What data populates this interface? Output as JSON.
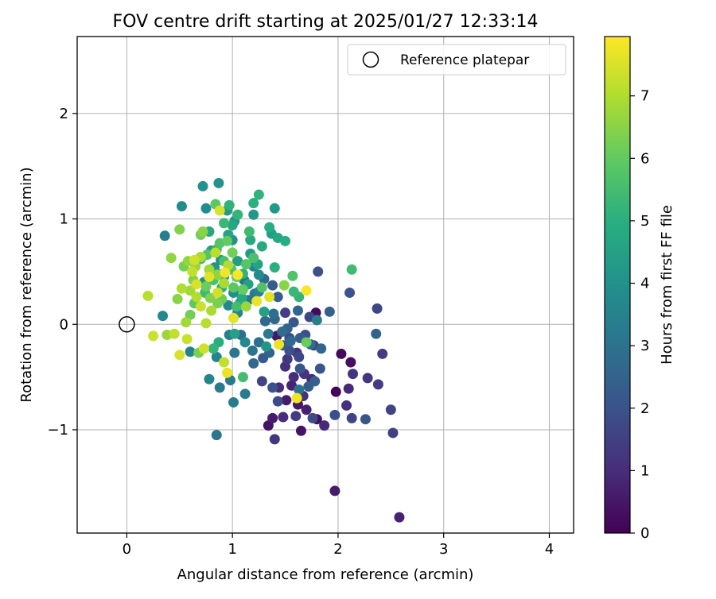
{
  "chart_data": {
    "type": "scatter",
    "title": "FOV centre drift starting at 2025/01/27 12:33:14",
    "xlabel": "Angular distance from reference (arcmin)",
    "ylabel": "Rotation from reference (arcmin)",
    "xlim": [
      -0.47,
      4.23
    ],
    "ylim": [
      -1.98,
      2.73
    ],
    "xticks": [
      0,
      1,
      2,
      3,
      4
    ],
    "yticks": [
      -1,
      0,
      1,
      2
    ],
    "xtick_labels": [
      "0",
      "1",
      "2",
      "3",
      "4"
    ],
    "ytick_labels": [
      "−1",
      "0",
      "1",
      "2"
    ],
    "grid": true,
    "legend": {
      "position": "top-right",
      "entries": [
        "Reference platepar"
      ]
    },
    "reference_point": {
      "name": "Reference platepar",
      "x": 0,
      "y": 0
    },
    "colorbar": {
      "label": "Hours from first FF file",
      "colormap": "viridis",
      "range": [
        0,
        7.95
      ],
      "ticks": [
        0,
        1,
        2,
        3,
        4,
        5,
        6,
        7
      ],
      "tick_labels": [
        "0",
        "1",
        "2",
        "3",
        "4",
        "5",
        "6",
        "7"
      ]
    },
    "points": [
      {
        "x": 1.98,
        "y": -0.64,
        "h": 0.1
      },
      {
        "x": 2.03,
        "y": -0.28,
        "h": 0.2
      },
      {
        "x": 2.12,
        "y": -0.36,
        "h": 0.3
      },
      {
        "x": 1.79,
        "y": 0.11,
        "h": 0.2
      },
      {
        "x": 1.8,
        "y": -0.9,
        "h": 0.3
      },
      {
        "x": 1.65,
        "y": -1.01,
        "h": 0.4
      },
      {
        "x": 1.34,
        "y": -0.96,
        "h": 0.4
      },
      {
        "x": 1.42,
        "y": -0.11,
        "h": 0.5
      },
      {
        "x": 1.62,
        "y": -0.76,
        "h": 0.5
      },
      {
        "x": 1.97,
        "y": -1.58,
        "h": 0.6
      },
      {
        "x": 1.51,
        "y": -0.72,
        "h": 0.6
      },
      {
        "x": 1.38,
        "y": -0.89,
        "h": 0.6
      },
      {
        "x": 1.7,
        "y": -0.81,
        "h": 0.7
      },
      {
        "x": 2.58,
        "y": -1.83,
        "h": 0.8
      },
      {
        "x": 1.56,
        "y": -0.58,
        "h": 0.8
      },
      {
        "x": 1.75,
        "y": -0.52,
        "h": 0.9
      },
      {
        "x": 2.1,
        "y": -0.61,
        "h": 0.9
      },
      {
        "x": 1.87,
        "y": -0.96,
        "h": 0.9
      },
      {
        "x": 1.48,
        "y": -0.88,
        "h": 1.0
      },
      {
        "x": 1.58,
        "y": -0.5,
        "h": 1.0
      },
      {
        "x": 1.44,
        "y": -0.6,
        "h": 1.0
      },
      {
        "x": 1.67,
        "y": -0.68,
        "h": 1.1
      },
      {
        "x": 2.08,
        "y": -0.77,
        "h": 1.1
      },
      {
        "x": 1.5,
        "y": -0.4,
        "h": 1.1
      },
      {
        "x": 1.68,
        "y": -0.47,
        "h": 1.2
      },
      {
        "x": 2.14,
        "y": -0.47,
        "h": 1.2
      },
      {
        "x": 2.28,
        "y": -0.51,
        "h": 1.2
      },
      {
        "x": 1.61,
        "y": -0.27,
        "h": 1.3
      },
      {
        "x": 1.52,
        "y": -0.33,
        "h": 1.3
      },
      {
        "x": 1.4,
        "y": -1.09,
        "h": 1.3
      },
      {
        "x": 2.38,
        "y": -0.57,
        "h": 1.4
      },
      {
        "x": 1.6,
        "y": -0.87,
        "h": 1.4
      },
      {
        "x": 2.42,
        "y": -0.28,
        "h": 1.4
      },
      {
        "x": 1.5,
        "y": 0.11,
        "h": 1.5
      },
      {
        "x": 1.77,
        "y": -0.2,
        "h": 1.5
      },
      {
        "x": 2.52,
        "y": -1.03,
        "h": 1.5
      },
      {
        "x": 1.28,
        "y": -0.54,
        "h": 1.6
      },
      {
        "x": 2.13,
        "y": -0.89,
        "h": 1.6
      },
      {
        "x": 2.5,
        "y": -0.81,
        "h": 1.6
      },
      {
        "x": 2.37,
        "y": 0.15,
        "h": 1.7
      },
      {
        "x": 1.73,
        "y": 0.07,
        "h": 1.7
      },
      {
        "x": 1.63,
        "y": -0.31,
        "h": 1.7
      },
      {
        "x": 1.43,
        "y": -0.73,
        "h": 1.8
      },
      {
        "x": 1.54,
        "y": -0.13,
        "h": 1.8
      },
      {
        "x": 1.76,
        "y": -0.89,
        "h": 1.8
      },
      {
        "x": 1.81,
        "y": 0.5,
        "h": 1.9
      },
      {
        "x": 1.97,
        "y": -0.86,
        "h": 1.9
      },
      {
        "x": 1.69,
        "y": -0.1,
        "h": 1.9
      },
      {
        "x": 1.54,
        "y": -0.25,
        "h": 2.0
      },
      {
        "x": 1.38,
        "y": -0.6,
        "h": 2.0
      },
      {
        "x": 2.11,
        "y": 0.3,
        "h": 2.0
      },
      {
        "x": 1.64,
        "y": -0.42,
        "h": 2.1
      },
      {
        "x": 1.83,
        "y": -0.42,
        "h": 2.1
      },
      {
        "x": 2.26,
        "y": -0.9,
        "h": 2.1
      },
      {
        "x": 1.48,
        "y": -0.2,
        "h": 2.2
      },
      {
        "x": 1.29,
        "y": -0.32,
        "h": 2.2
      },
      {
        "x": 1.58,
        "y": 0.02,
        "h": 2.2
      },
      {
        "x": 1.72,
        "y": -0.59,
        "h": 2.3
      },
      {
        "x": 1.38,
        "y": 0.37,
        "h": 2.3
      },
      {
        "x": 1.64,
        "y": -0.13,
        "h": 2.3
      },
      {
        "x": 1.78,
        "y": -0.54,
        "h": 2.4
      },
      {
        "x": 1.92,
        "y": 0.12,
        "h": 2.4
      },
      {
        "x": 1.43,
        "y": 0.26,
        "h": 2.4
      },
      {
        "x": 1.52,
        "y": -0.04,
        "h": 2.5
      },
      {
        "x": 1.35,
        "y": -0.27,
        "h": 2.5
      },
      {
        "x": 2.36,
        "y": -0.09,
        "h": 2.5
      },
      {
        "x": 1.62,
        "y": 0.13,
        "h": 2.6
      },
      {
        "x": 1.4,
        "y": 0.05,
        "h": 2.6
      },
      {
        "x": 1.84,
        "y": -0.23,
        "h": 2.6
      },
      {
        "x": 1.31,
        "y": 0.03,
        "h": 2.7
      },
      {
        "x": 1.55,
        "y": -0.16,
        "h": 2.7
      },
      {
        "x": 1.2,
        "y": -0.37,
        "h": 2.7
      },
      {
        "x": 1.74,
        "y": -0.19,
        "h": 2.8
      },
      {
        "x": 1.3,
        "y": 0.43,
        "h": 2.8
      },
      {
        "x": 1.47,
        "y": -0.07,
        "h": 2.8
      },
      {
        "x": 1.08,
        "y": -0.1,
        "h": 2.9
      },
      {
        "x": 1.25,
        "y": -0.17,
        "h": 2.9
      },
      {
        "x": 1.39,
        "y": 0.1,
        "h": 2.9
      },
      {
        "x": 1.11,
        "y": 0.42,
        "h": 3.0
      },
      {
        "x": 1.63,
        "y": -0.62,
        "h": 3.0
      },
      {
        "x": 1.19,
        "y": -0.25,
        "h": 3.0
      },
      {
        "x": 0.85,
        "y": -1.05,
        "h": 3.1
      },
      {
        "x": 1.15,
        "y": 0.23,
        "h": 3.1
      },
      {
        "x": 1.02,
        "y": -0.27,
        "h": 3.1
      },
      {
        "x": 1.34,
        "y": -0.09,
        "h": 3.2
      },
      {
        "x": 0.98,
        "y": -0.53,
        "h": 3.2
      },
      {
        "x": 1.21,
        "y": 0.29,
        "h": 3.2
      },
      {
        "x": 0.88,
        "y": -0.6,
        "h": 3.3
      },
      {
        "x": 1.01,
        "y": -0.74,
        "h": 3.3
      },
      {
        "x": 1.12,
        "y": -0.66,
        "h": 3.3
      },
      {
        "x": 0.97,
        "y": -0.1,
        "h": 3.4
      },
      {
        "x": 0.36,
        "y": 0.84,
        "h": 3.4
      },
      {
        "x": 1.8,
        "y": 0.04,
        "h": 3.4
      },
      {
        "x": 0.85,
        "y": -0.31,
        "h": 3.5
      },
      {
        "x": 1.25,
        "y": 0.31,
        "h": 3.5
      },
      {
        "x": 0.6,
        "y": -0.26,
        "h": 3.5
      },
      {
        "x": 1.05,
        "y": 0.11,
        "h": 3.6
      },
      {
        "x": 0.78,
        "y": -0.52,
        "h": 3.6
      },
      {
        "x": 1.2,
        "y": 0.55,
        "h": 3.6
      },
      {
        "x": 0.96,
        "y": 0.18,
        "h": 3.7
      },
      {
        "x": 0.34,
        "y": 0.08,
        "h": 3.7
      },
      {
        "x": 1.12,
        "y": -0.17,
        "h": 3.7
      },
      {
        "x": 0.52,
        "y": 1.12,
        "h": 3.8
      },
      {
        "x": 0.75,
        "y": 1.1,
        "h": 3.8
      },
      {
        "x": 1.25,
        "y": 0.47,
        "h": 3.8
      },
      {
        "x": 0.73,
        "y": 0.4,
        "h": 3.9
      },
      {
        "x": 1.01,
        "y": 0.3,
        "h": 3.9
      },
      {
        "x": 0.89,
        "y": 0.61,
        "h": 3.9
      },
      {
        "x": 0.72,
        "y": 1.31,
        "h": 4.0
      },
      {
        "x": 0.87,
        "y": 1.34,
        "h": 4.0
      },
      {
        "x": 1.0,
        "y": 0.8,
        "h": 4.0
      },
      {
        "x": 0.83,
        "y": 0.54,
        "h": 4.1
      },
      {
        "x": 1.07,
        "y": 0.2,
        "h": 4.1
      },
      {
        "x": 1.32,
        "y": -0.21,
        "h": 4.1
      },
      {
        "x": 1.02,
        "y": 0.98,
        "h": 4.2
      },
      {
        "x": 0.95,
        "y": 1.08,
        "h": 4.2
      },
      {
        "x": 1.2,
        "y": 1.04,
        "h": 4.2
      },
      {
        "x": 1.4,
        "y": 1.1,
        "h": 4.3
      },
      {
        "x": 0.92,
        "y": 0.45,
        "h": 4.3
      },
      {
        "x": 1.17,
        "y": 0.67,
        "h": 4.3
      },
      {
        "x": 1.05,
        "y": 0.6,
        "h": 4.4
      },
      {
        "x": 0.8,
        "y": 0.7,
        "h": 4.4
      },
      {
        "x": 1.37,
        "y": 0.86,
        "h": 4.4
      },
      {
        "x": 1.3,
        "y": 0.12,
        "h": 4.5
      },
      {
        "x": 1.15,
        "y": 0.38,
        "h": 4.5
      },
      {
        "x": 1.02,
        "y": -0.09,
        "h": 4.5
      },
      {
        "x": 0.96,
        "y": 0.85,
        "h": 4.6
      },
      {
        "x": 0.86,
        "y": 0.48,
        "h": 4.6
      },
      {
        "x": 1.24,
        "y": 0.57,
        "h": 4.6
      },
      {
        "x": 1.43,
        "y": 0.82,
        "h": 4.7
      },
      {
        "x": 0.78,
        "y": 0.88,
        "h": 4.7
      },
      {
        "x": 1.0,
        "y": 0.94,
        "h": 4.7
      },
      {
        "x": 1.28,
        "y": 0.74,
        "h": 4.8
      },
      {
        "x": 1.17,
        "y": 0.8,
        "h": 4.8
      },
      {
        "x": 1.09,
        "y": 0.25,
        "h": 4.8
      },
      {
        "x": 1.5,
        "y": 0.79,
        "h": 4.9
      },
      {
        "x": 1.35,
        "y": 0.92,
        "h": 4.9
      },
      {
        "x": 0.87,
        "y": -0.17,
        "h": 4.9
      },
      {
        "x": 1.4,
        "y": 0.54,
        "h": 5.0
      },
      {
        "x": 1.2,
        "y": 1.15,
        "h": 5.0
      },
      {
        "x": 0.9,
        "y": 0.35,
        "h": 5.0
      },
      {
        "x": 1.25,
        "y": 1.23,
        "h": 5.1
      },
      {
        "x": 0.97,
        "y": 1.13,
        "h": 5.1
      },
      {
        "x": 1.1,
        "y": 0.48,
        "h": 5.1
      },
      {
        "x": 0.82,
        "y": -0.23,
        "h": 5.2
      },
      {
        "x": 1.05,
        "y": 1.04,
        "h": 5.2
      },
      {
        "x": 1.63,
        "y": 0.26,
        "h": 5.2
      },
      {
        "x": 0.92,
        "y": 0.96,
        "h": 5.3
      },
      {
        "x": 0.85,
        "y": 0.71,
        "h": 5.3
      },
      {
        "x": 1.58,
        "y": 0.31,
        "h": 5.3
      },
      {
        "x": 1.16,
        "y": 0.88,
        "h": 5.4
      },
      {
        "x": 0.74,
        "y": 0.3,
        "h": 5.4
      },
      {
        "x": 2.13,
        "y": 0.52,
        "h": 5.4
      },
      {
        "x": 0.7,
        "y": 0.62,
        "h": 5.5
      },
      {
        "x": 1.1,
        "y": -0.5,
        "h": 5.5
      },
      {
        "x": 1.04,
        "y": 0.17,
        "h": 5.5
      },
      {
        "x": 0.92,
        "y": 0.6,
        "h": 5.6
      },
      {
        "x": 1.2,
        "y": 0.63,
        "h": 5.6
      },
      {
        "x": 0.82,
        "y": 0.42,
        "h": 5.6
      },
      {
        "x": 0.99,
        "y": 0.52,
        "h": 5.7
      },
      {
        "x": 1.28,
        "y": 0.35,
        "h": 5.7
      },
      {
        "x": 1.57,
        "y": 0.46,
        "h": 5.7
      },
      {
        "x": 0.88,
        "y": 0.77,
        "h": 5.8
      },
      {
        "x": 1.13,
        "y": 0.57,
        "h": 5.8
      },
      {
        "x": 0.76,
        "y": 0.66,
        "h": 5.8
      },
      {
        "x": 1.01,
        "y": 0.35,
        "h": 5.9
      },
      {
        "x": 0.84,
        "y": 1.14,
        "h": 5.9
      },
      {
        "x": 0.64,
        "y": 0.2,
        "h": 5.9
      },
      {
        "x": 1.1,
        "y": 0.33,
        "h": 6.0
      },
      {
        "x": 0.95,
        "y": 0.79,
        "h": 6.0
      },
      {
        "x": 1.04,
        "y": 0.45,
        "h": 6.0
      },
      {
        "x": 0.75,
        "y": 0.36,
        "h": 6.1
      },
      {
        "x": 0.9,
        "y": 0.24,
        "h": 6.1
      },
      {
        "x": 1.7,
        "y": -0.17,
        "h": 6.1
      },
      {
        "x": 0.7,
        "y": 0.85,
        "h": 6.2
      },
      {
        "x": 0.6,
        "y": 0.09,
        "h": 6.2
      },
      {
        "x": 1.0,
        "y": 0.68,
        "h": 6.2
      },
      {
        "x": 0.54,
        "y": 0.55,
        "h": 6.3
      },
      {
        "x": 0.86,
        "y": 0.2,
        "h": 6.3
      },
      {
        "x": 0.68,
        "y": -0.27,
        "h": 6.3
      },
      {
        "x": 0.5,
        "y": 0.9,
        "h": 6.4
      },
      {
        "x": 0.63,
        "y": 0.42,
        "h": 6.4
      },
      {
        "x": 0.79,
        "y": 0.25,
        "h": 6.4
      },
      {
        "x": 0.48,
        "y": 0.24,
        "h": 6.5
      },
      {
        "x": 0.72,
        "y": 0.88,
        "h": 6.5
      },
      {
        "x": 1.49,
        "y": 0.37,
        "h": 6.5
      },
      {
        "x": 0.58,
        "y": 0.6,
        "h": 6.6
      },
      {
        "x": 0.86,
        "y": 0.47,
        "h": 6.6
      },
      {
        "x": 0.42,
        "y": 0.63,
        "h": 6.6
      },
      {
        "x": 0.38,
        "y": -0.1,
        "h": 6.7
      },
      {
        "x": 0.65,
        "y": 0.55,
        "h": 6.7
      },
      {
        "x": 1.13,
        "y": 0.17,
        "h": 6.7
      },
      {
        "x": 0.6,
        "y": 0.32,
        "h": 6.8
      },
      {
        "x": 0.78,
        "y": 0.52,
        "h": 6.8
      },
      {
        "x": 0.56,
        "y": 0.02,
        "h": 6.8
      },
      {
        "x": 0.7,
        "y": 0.64,
        "h": 6.9
      },
      {
        "x": 0.92,
        "y": 0.39,
        "h": 6.9
      },
      {
        "x": 0.8,
        "y": 0.13,
        "h": 6.9
      },
      {
        "x": 0.66,
        "y": 0.26,
        "h": 7.0
      },
      {
        "x": 0.52,
        "y": 0.34,
        "h": 7.0
      },
      {
        "x": 0.96,
        "y": 0.56,
        "h": 7.0
      },
      {
        "x": 0.2,
        "y": 0.27,
        "h": 7.1
      },
      {
        "x": 0.75,
        "y": 0.01,
        "h": 7.1
      },
      {
        "x": 0.84,
        "y": 0.68,
        "h": 7.1
      },
      {
        "x": 0.45,
        "y": -0.09,
        "h": 7.2
      },
      {
        "x": 0.62,
        "y": 0.5,
        "h": 7.2
      },
      {
        "x": 0.92,
        "y": -0.36,
        "h": 7.2
      },
      {
        "x": 0.25,
        "y": -0.11,
        "h": 7.3
      },
      {
        "x": 0.7,
        "y": 0.17,
        "h": 7.3
      },
      {
        "x": 0.57,
        "y": -0.14,
        "h": 7.3
      },
      {
        "x": 0.86,
        "y": 0.3,
        "h": 7.4
      },
      {
        "x": 0.64,
        "y": 0.61,
        "h": 7.4
      },
      {
        "x": 0.73,
        "y": -0.23,
        "h": 7.4
      },
      {
        "x": 0.5,
        "y": -0.29,
        "h": 7.5
      },
      {
        "x": 0.88,
        "y": 1.08,
        "h": 7.5
      },
      {
        "x": 0.66,
        "y": 0.38,
        "h": 7.5
      },
      {
        "x": 1.35,
        "y": 0.26,
        "h": 7.6
      },
      {
        "x": 0.78,
        "y": 0.45,
        "h": 7.6
      },
      {
        "x": 1.01,
        "y": 0.06,
        "h": 7.6
      },
      {
        "x": 1.44,
        "y": -0.19,
        "h": 7.7
      },
      {
        "x": 0.95,
        "y": -0.46,
        "h": 7.7
      },
      {
        "x": 1.23,
        "y": 0.22,
        "h": 7.7
      },
      {
        "x": 0.93,
        "y": 0.49,
        "h": 7.8
      },
      {
        "x": 1.61,
        "y": -0.7,
        "h": 7.8
      },
      {
        "x": 1.05,
        "y": 0.47,
        "h": 7.9
      },
      {
        "x": 1.7,
        "y": 0.32,
        "h": 7.9
      }
    ]
  }
}
